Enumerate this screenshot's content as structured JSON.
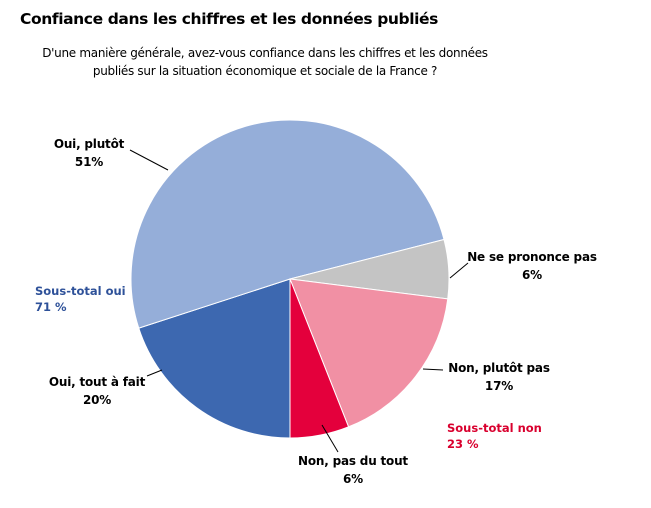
{
  "chart_data": {
    "type": "pie",
    "title": "Confiance dans les chiffres et les données publiés",
    "subtitle_lines": [
      "D'une manière générale, avez-vous confiance dans les chiffres et les données",
      "publiés sur la situation économique et sociale de la France ?"
    ],
    "slices": [
      {
        "label": "Oui, tout à fait",
        "value": 20,
        "value_label": "20%",
        "color": "#3D68B0"
      },
      {
        "label": "Oui, plutôt",
        "value": 51,
        "value_label": "51%",
        "color": "#95AED9"
      },
      {
        "label": "Ne se prononce pas",
        "value": 6,
        "value_label": "6%",
        "color": "#C4C4C4"
      },
      {
        "label": "Non, plutôt pas",
        "value": 17,
        "value_label": "17%",
        "color": "#F190A4"
      },
      {
        "label": "Non, pas du tout",
        "value": 6,
        "value_label": "6%",
        "color": "#E4003C"
      }
    ],
    "subtotals": [
      {
        "label": "Sous-total oui",
        "value_label": "71 %",
        "color": "#2E5199"
      },
      {
        "label": "Sous-total non",
        "value_label": "23 %",
        "color": "#D9002E"
      }
    ]
  }
}
